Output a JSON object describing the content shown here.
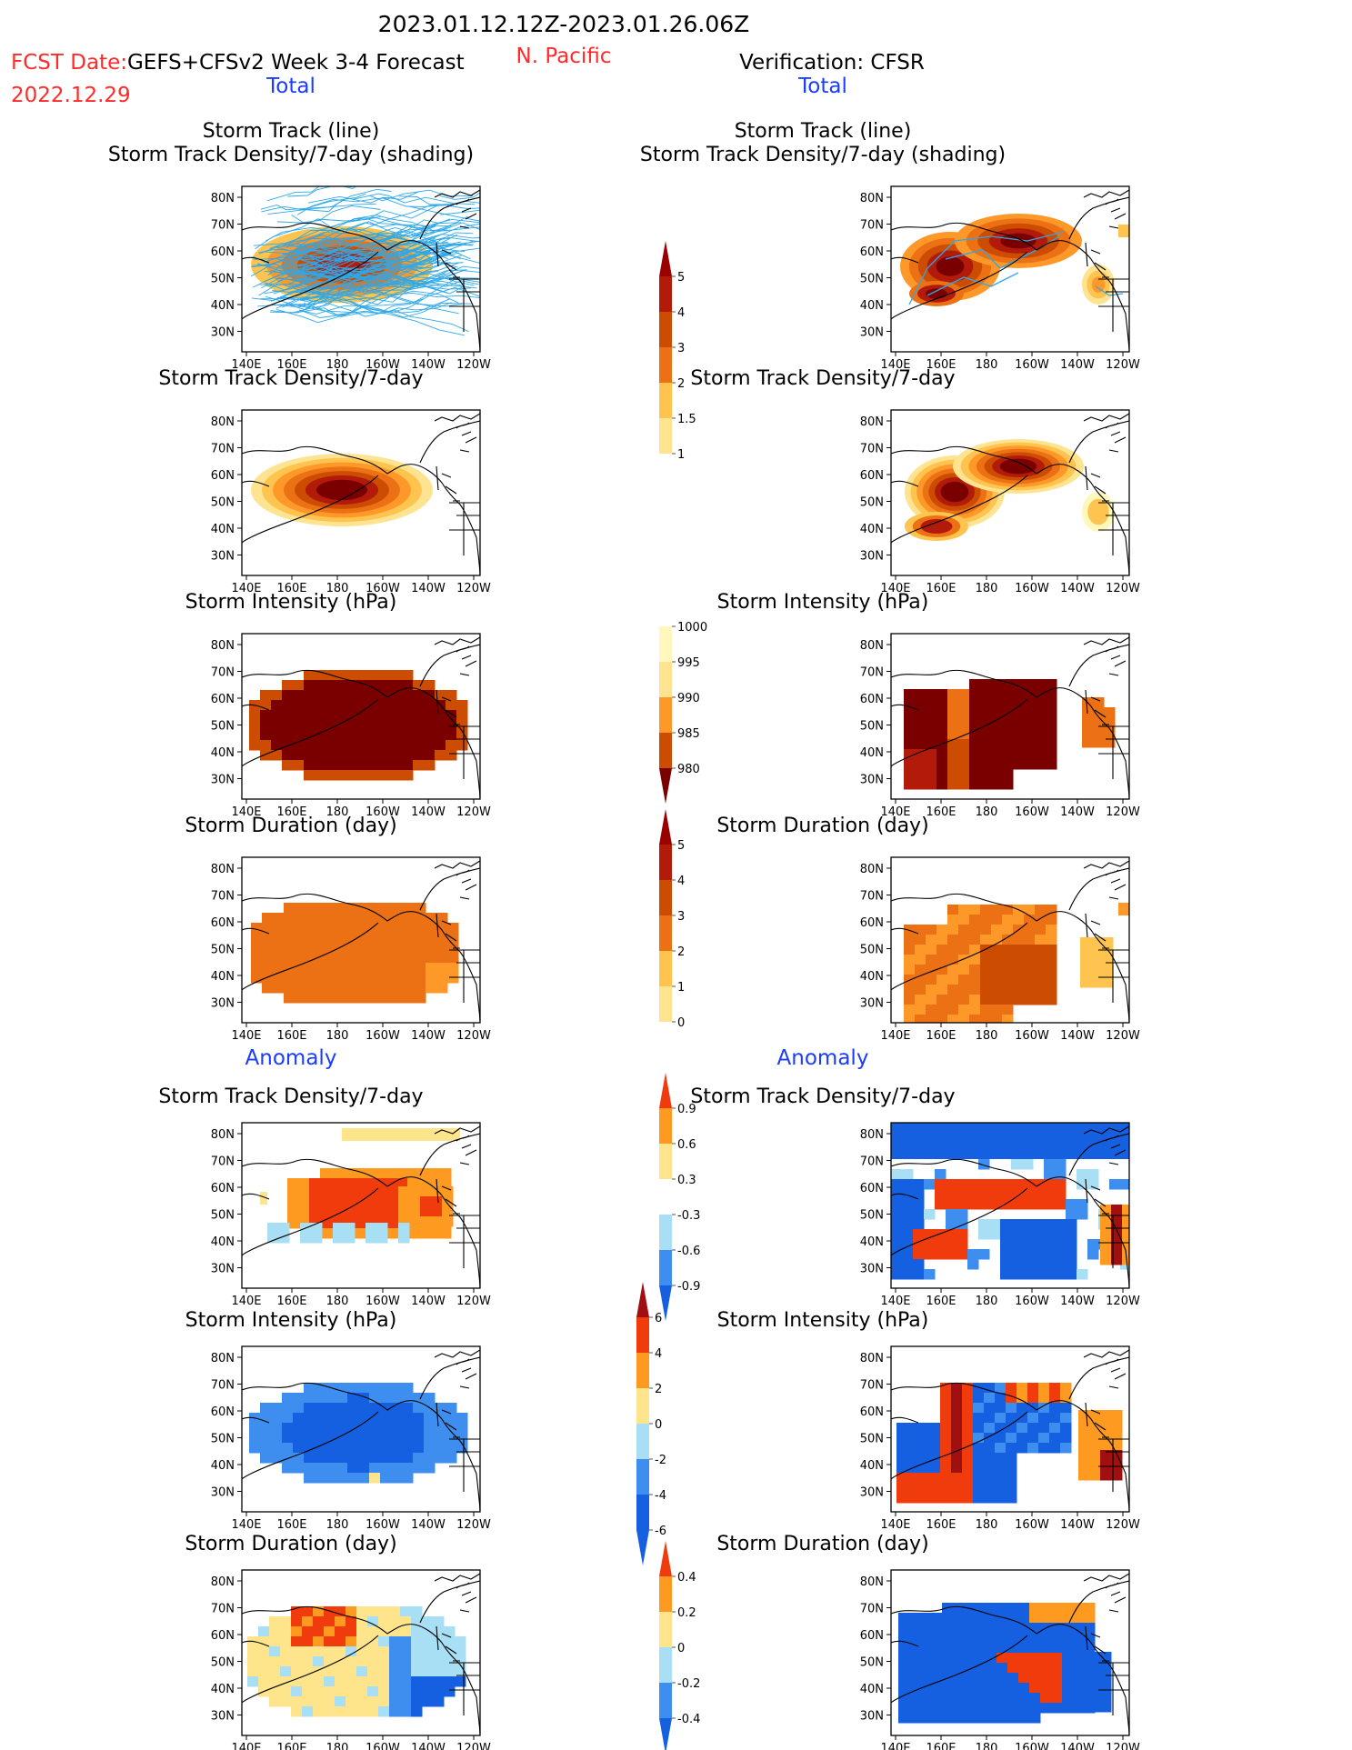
{
  "header": {
    "date_range": "2023.01.12.12Z-2023.01.26.06Z",
    "region": "N. Pacific",
    "fcst_prefix": "FCST Date:",
    "fcst_model": "GEFS+CFSv2 Week 3-4 Forecast",
    "fcst_date": "2022.12.29",
    "verification": "Verification: CFSR",
    "total_label": "Total",
    "anomaly_label": "Anomaly"
  },
  "colors": {
    "red_text": "#ff2a2a",
    "blue_text": "#1a3cff",
    "warm": [
      "#fff7bc",
      "#fee391",
      "#fec44f",
      "#fe9929",
      "#ec7014",
      "#cc4c02",
      "#b21a0a",
      "#7a0000"
    ],
    "anom": [
      "#1560e0",
      "#3e8ef0",
      "#a8dff5",
      "#ffffff",
      "#fee58c",
      "#fd9a1f",
      "#f03c0c",
      "#a01010"
    ]
  },
  "map": {
    "lat_ticks": [
      "80N",
      "70N",
      "60N",
      "50N",
      "40N",
      "30N"
    ],
    "lon_ticks": [
      "140E",
      "160E",
      "180",
      "160W",
      "140W",
      "120W"
    ]
  },
  "panel_titles": {
    "track_line": "Storm Track (line)",
    "track_shading": "Storm Track Density/7-day (shading)",
    "density": "Storm Track Density/7-day",
    "intensity": "Storm Intensity (hPa)",
    "duration": "Storm Duration (day)"
  },
  "chart_data": [
    {
      "type": "heatmap",
      "title": "Storm Track Density/7-day (shading)",
      "column": "forecast",
      "section": "Total",
      "colorbar": [
        1,
        1.5,
        2,
        3,
        4,
        5
      ]
    },
    {
      "type": "heatmap",
      "title": "Storm Track Density/7-day (shading)",
      "column": "verification",
      "section": "Total",
      "colorbar": [
        1,
        1.5,
        2,
        3,
        4,
        5
      ]
    },
    {
      "type": "heatmap",
      "title": "Storm Track Density/7-day",
      "column": "forecast",
      "section": "Total",
      "colorbar": [
        1,
        1.5,
        2,
        3,
        4,
        5
      ]
    },
    {
      "type": "heatmap",
      "title": "Storm Track Density/7-day",
      "column": "verification",
      "section": "Total",
      "colorbar": [
        1,
        1.5,
        2,
        3,
        4,
        5
      ]
    },
    {
      "type": "heatmap",
      "title": "Storm Intensity (hPa)",
      "column": "forecast",
      "section": "Total",
      "colorbar": [
        1000,
        995,
        990,
        985,
        980
      ]
    },
    {
      "type": "heatmap",
      "title": "Storm Intensity (hPa)",
      "column": "verification",
      "section": "Total",
      "colorbar": [
        1000,
        995,
        990,
        985,
        980
      ]
    },
    {
      "type": "heatmap",
      "title": "Storm Duration (day)",
      "column": "forecast",
      "section": "Total",
      "colorbar": [
        0,
        1,
        2,
        3,
        4,
        5
      ]
    },
    {
      "type": "heatmap",
      "title": "Storm Duration (day)",
      "column": "verification",
      "section": "Total",
      "colorbar": [
        0,
        1,
        2,
        3,
        4,
        5
      ]
    },
    {
      "type": "heatmap",
      "title": "Storm Track Density/7-day",
      "column": "forecast",
      "section": "Anomaly",
      "colorbar": [
        0.9,
        0.6,
        0.3,
        -0.3,
        -0.6,
        -0.9
      ]
    },
    {
      "type": "heatmap",
      "title": "Storm Track Density/7-day",
      "column": "verification",
      "section": "Anomaly",
      "colorbar": [
        0.9,
        0.6,
        0.3,
        -0.3,
        -0.6,
        -0.9
      ]
    },
    {
      "type": "heatmap",
      "title": "Storm Intensity (hPa)",
      "column": "forecast",
      "section": "Anomaly",
      "colorbar": [
        6,
        4,
        2,
        0,
        -2,
        -4,
        -6
      ]
    },
    {
      "type": "heatmap",
      "title": "Storm Intensity (hPa)",
      "column": "verification",
      "section": "Anomaly",
      "colorbar": [
        6,
        4,
        2,
        0,
        -2,
        -4,
        -6
      ]
    },
    {
      "type": "heatmap",
      "title": "Storm Duration (day)",
      "column": "forecast",
      "section": "Anomaly",
      "colorbar": [
        0.4,
        0.2,
        0,
        -0.2,
        -0.4
      ]
    },
    {
      "type": "heatmap",
      "title": "Storm Duration (day)",
      "column": "verification",
      "section": "Anomaly",
      "colorbar": [
        0.4,
        0.2,
        0,
        -0.2,
        -0.4
      ]
    }
  ]
}
